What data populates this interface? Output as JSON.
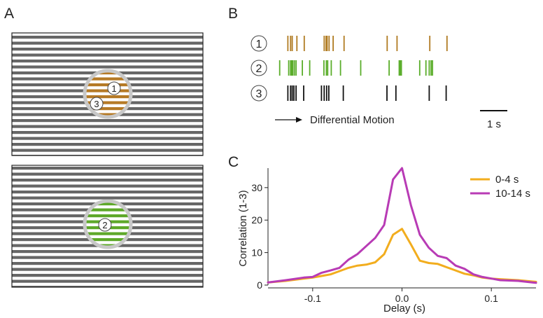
{
  "panels": {
    "A": {
      "letter": "A",
      "stimuli": [
        {
          "circle_color": "#b57a26",
          "neurons": [
            "1",
            "3"
          ]
        },
        {
          "circle_color": "#5ea829",
          "neurons": [
            "2"
          ]
        }
      ],
      "stripe_color": "#666666",
      "mask_color": "#c8c8c8"
    },
    "B": {
      "letter": "B",
      "rasters": [
        {
          "label": "1",
          "color": "#b07b22",
          "spikes": [
            1.62,
            1.72,
            1.78,
            1.95,
            2.22,
            2.95,
            3.02,
            3.06,
            3.13,
            3.28,
            3.68,
            5.26,
            5.62,
            6.82,
            7.45
          ]
        },
        {
          "label": "2",
          "color": "#5aad2a",
          "spikes": [
            1.32,
            1.65,
            1.72,
            1.76,
            1.8,
            1.86,
            1.92,
            2.15,
            2.42,
            2.94,
            3.03,
            3.08,
            3.21,
            3.55,
            4.29,
            5.33,
            5.7,
            5.74,
            5.78,
            6.45,
            6.68,
            6.8,
            6.87,
            6.92
          ]
        },
        {
          "label": "3",
          "color": "#111111",
          "spikes": [
            1.62,
            1.72,
            1.78,
            1.84,
            1.92,
            2.2,
            2.85,
            2.95,
            3.04,
            3.12,
            3.65,
            5.25,
            5.58,
            6.8,
            7.42
          ]
        }
      ],
      "motion_label": "Differential Motion",
      "scalebar_label": "1 s"
    },
    "C": {
      "letter": "C"
    }
  },
  "chart_data": {
    "type": "line",
    "xlabel": "Delay (s)",
    "ylabel": "Correlation (1-3)",
    "xlim": [
      -0.15,
      0.15
    ],
    "ylim": [
      0,
      36
    ],
    "xticks": [
      -0.1,
      0.0,
      0.1
    ],
    "xtick_labels": [
      "-0.1",
      "0.0",
      "0.1"
    ],
    "yticks": [
      0,
      10,
      20,
      30
    ],
    "ytick_labels": [
      "0",
      "10",
      "20",
      "30"
    ],
    "legend_position": "top-right",
    "series": [
      {
        "name": "0-4 s",
        "color": "#f2ad1e",
        "x": [
          -0.15,
          -0.13,
          -0.11,
          -0.1,
          -0.09,
          -0.08,
          -0.07,
          -0.06,
          -0.05,
          -0.04,
          -0.03,
          -0.02,
          -0.01,
          0.0,
          0.01,
          0.02,
          0.03,
          0.04,
          0.05,
          0.06,
          0.07,
          0.08,
          0.09,
          0.1,
          0.11,
          0.13,
          0.15
        ],
        "y": [
          0.8,
          1.3,
          2.0,
          2.3,
          2.8,
          3.3,
          4.3,
          5.3,
          6.0,
          6.3,
          7.0,
          9.5,
          15.5,
          17.3,
          12.5,
          7.5,
          6.8,
          6.5,
          5.5,
          4.5,
          3.5,
          3.0,
          2.3,
          2.0,
          1.8,
          1.5,
          1.0
        ]
      },
      {
        "name": "10-14 s",
        "color": "#b83bb5",
        "x": [
          -0.15,
          -0.13,
          -0.11,
          -0.1,
          -0.09,
          -0.08,
          -0.07,
          -0.06,
          -0.05,
          -0.04,
          -0.03,
          -0.02,
          -0.01,
          0.0,
          0.01,
          0.02,
          0.03,
          0.04,
          0.05,
          0.06,
          0.07,
          0.08,
          0.09,
          0.1,
          0.11,
          0.13,
          0.15
        ],
        "y": [
          0.8,
          1.5,
          2.3,
          2.5,
          3.8,
          4.5,
          5.3,
          7.8,
          9.5,
          12.0,
          14.5,
          18.5,
          32.5,
          36.0,
          24.5,
          15.5,
          11.5,
          9.0,
          8.3,
          6.0,
          5.0,
          3.3,
          2.5,
          2.0,
          1.5,
          1.3,
          0.7
        ]
      }
    ]
  }
}
